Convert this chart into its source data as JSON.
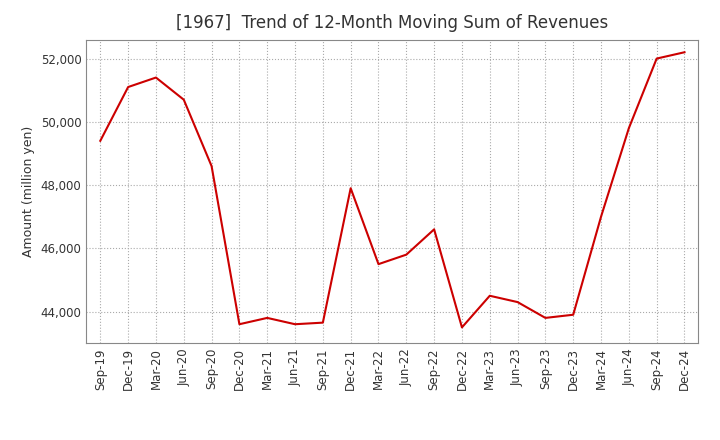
{
  "title": "[1967]  Trend of 12-Month Moving Sum of Revenues",
  "ylabel": "Amount (million yen)",
  "line_color": "#cc0000",
  "background_color": "#ffffff",
  "grid_color": "#aaaaaa",
  "x_labels": [
    "Sep-19",
    "Dec-19",
    "Mar-20",
    "Jun-20",
    "Sep-20",
    "Dec-20",
    "Mar-21",
    "Jun-21",
    "Sep-21",
    "Dec-21",
    "Mar-22",
    "Jun-22",
    "Sep-22",
    "Dec-22",
    "Mar-23",
    "Jun-23",
    "Sep-23",
    "Dec-23",
    "Mar-24",
    "Jun-24",
    "Sep-24",
    "Dec-24"
  ],
  "values": [
    49400,
    51100,
    51400,
    50700,
    48600,
    43600,
    43800,
    43600,
    43650,
    47900,
    45500,
    45800,
    46600,
    43500,
    44500,
    44300,
    43800,
    43900,
    47000,
    49800,
    52000,
    52200
  ],
  "ylim": [
    43000,
    52600
  ],
  "yticks": [
    44000,
    46000,
    48000,
    50000,
    52000
  ],
  "title_fontsize": 12,
  "label_fontsize": 9,
  "tick_fontsize": 8.5
}
